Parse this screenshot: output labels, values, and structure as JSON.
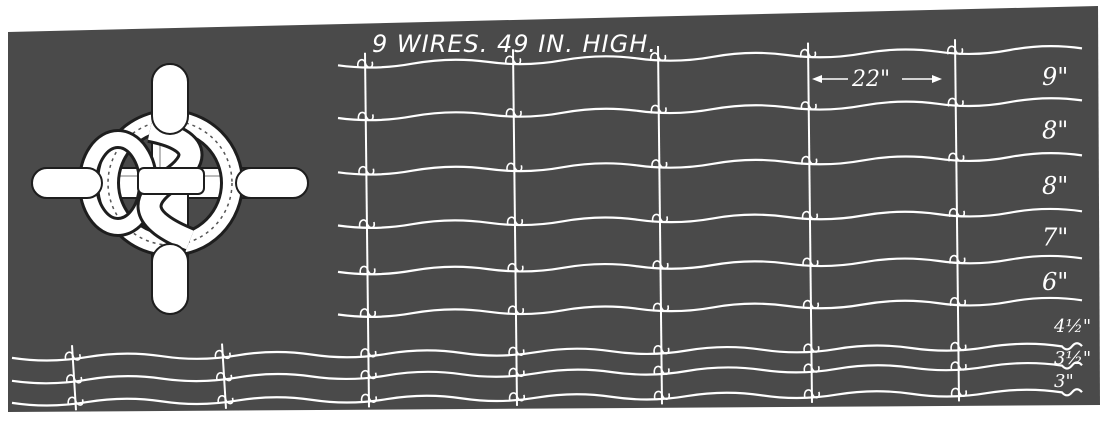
{
  "plate": {
    "title": "9 WIRES. 49 IN. HIGH.",
    "stay_spacing_label": "22\"",
    "wire_spacings": [
      "9\"",
      "8\"",
      "8\"",
      "7\"",
      "6\"",
      "4½\"",
      "3½\"",
      "3\""
    ],
    "knot_detail": "knot-detail-icon",
    "colors": {
      "background": "#4a4a4a",
      "paper": "#ffffff",
      "ink": "#ffffff",
      "dark": "#1e1e1e"
    }
  }
}
